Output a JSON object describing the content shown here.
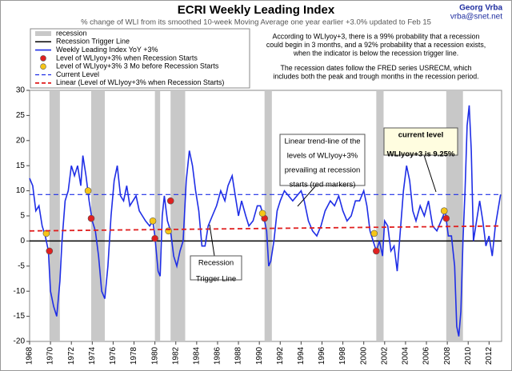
{
  "chart_data": {
    "type": "line",
    "title": "ECRI Weekly Leading Index",
    "subtitle": "% change of WLI from its smoothed 10-week Moving Average one year earlier +3.0% updated to Feb 15",
    "author": "Georg Vrba",
    "email": "vrba@snet.net",
    "notes": [
      "According to WLIyoy+3, there is a 99% probability that a recession",
      "could begin in 3 months, and a 92% probability that a recession exists,",
      "when the indicator is below the recession trigger line.",
      "The recession dates follow the FRED series USRECM, which",
      "includes both the peak and trough months in the recession period."
    ],
    "xlim": [
      1968,
      2013.2
    ],
    "ylim": [
      -20,
      30
    ],
    "xticks": [
      1968,
      1970,
      1972,
      1974,
      1976,
      1978,
      1980,
      1982,
      1984,
      1986,
      1988,
      1990,
      1992,
      1994,
      1996,
      1998,
      2000,
      2002,
      2004,
      2006,
      2008,
      2010,
      2012
    ],
    "yticks": [
      -20,
      -15,
      -10,
      -5,
      0,
      5,
      10,
      15,
      20,
      25,
      30
    ],
    "recessions": {
      "name": "recession",
      "color": "#c8c8c8",
      "spans": [
        [
          1969.9,
          1970.9
        ],
        [
          1973.9,
          1975.2
        ],
        [
          1980.0,
          1980.5
        ],
        [
          1981.5,
          1982.9
        ],
        [
          1990.5,
          1991.2
        ],
        [
          2001.2,
          2001.9
        ],
        [
          2007.9,
          2009.5
        ]
      ]
    },
    "series": [
      {
        "name": "Recession Trigger Line",
        "type": "line",
        "color": "#000000",
        "width": 1.5,
        "x": [
          1968,
          2013.2
        ],
        "values": [
          0,
          0
        ]
      },
      {
        "name": "Weekly Leading Index YoY +3%",
        "type": "line",
        "color": "#1f2ee6",
        "width": 1.6,
        "x": [
          1968.0,
          1968.3,
          1968.6,
          1968.9,
          1969.2,
          1969.5,
          1969.8,
          1970.0,
          1970.3,
          1970.6,
          1970.9,
          1971.1,
          1971.4,
          1971.7,
          1972.0,
          1972.3,
          1972.6,
          1972.9,
          1973.1,
          1973.4,
          1973.7,
          1974.0,
          1974.3,
          1974.6,
          1974.9,
          1975.2,
          1975.5,
          1975.8,
          1976.1,
          1976.4,
          1976.7,
          1977.0,
          1977.3,
          1977.6,
          1977.9,
          1978.2,
          1978.5,
          1978.8,
          1979.1,
          1979.5,
          1979.8,
          1980.0,
          1980.3,
          1980.5,
          1980.7,
          1980.9,
          1981.2,
          1981.5,
          1981.8,
          1982.1,
          1982.4,
          1982.7,
          1983.0,
          1983.3,
          1983.6,
          1983.9,
          1984.2,
          1984.5,
          1984.8,
          1985.1,
          1985.5,
          1985.9,
          1986.3,
          1986.7,
          1987.0,
          1987.4,
          1987.7,
          1988.0,
          1988.3,
          1988.7,
          1989.0,
          1989.4,
          1989.8,
          1990.1,
          1990.4,
          1990.7,
          1990.9,
          1991.1,
          1991.4,
          1991.7,
          1992.0,
          1992.4,
          1992.8,
          1993.2,
          1993.6,
          1994.0,
          1994.3,
          1994.7,
          1995.1,
          1995.5,
          1995.9,
          1996.3,
          1996.8,
          1997.2,
          1997.6,
          1998.0,
          1998.4,
          1998.8,
          1999.2,
          1999.6,
          2000.0,
          2000.3,
          2000.6,
          2000.9,
          2001.2,
          2001.5,
          2001.8,
          2002.0,
          2002.3,
          2002.6,
          2002.9,
          2003.2,
          2003.5,
          2003.8,
          2004.1,
          2004.4,
          2004.7,
          2005.0,
          2005.4,
          2005.8,
          2006.2,
          2006.6,
          2007.0,
          2007.4,
          2007.8,
          2008.1,
          2008.4,
          2008.7,
          2008.9,
          2009.1,
          2009.3,
          2009.5,
          2009.7,
          2009.9,
          2010.1,
          2010.3,
          2010.5,
          2010.8,
          2011.1,
          2011.4,
          2011.7,
          2012.0,
          2012.3,
          2012.6,
          2013.0,
          2013.1
        ],
        "values": [
          12.5,
          11,
          6,
          7,
          3,
          1,
          -2,
          -10,
          -13,
          -15,
          -8,
          0,
          8,
          10,
          15,
          13,
          15,
          11,
          17,
          13,
          8,
          4,
          2,
          -3,
          -10,
          -11.5,
          -5,
          5,
          12,
          15,
          9,
          8,
          11,
          7,
          8,
          9,
          6,
          5,
          4,
          3,
          4,
          1,
          -6,
          -7,
          5,
          9,
          4,
          2,
          -3,
          -5,
          -2,
          0,
          12,
          18,
          15,
          10,
          6,
          -1,
          -1,
          3,
          5,
          7,
          10,
          8,
          11,
          13,
          9,
          5,
          8,
          5,
          3,
          4,
          7,
          7,
          5,
          2,
          -5,
          -4,
          0,
          6,
          8,
          10,
          9,
          8,
          9,
          10,
          8,
          4,
          2,
          1,
          3,
          6,
          8,
          7,
          9,
          6,
          4,
          5,
          8,
          8,
          10,
          7,
          2,
          0,
          -2,
          0,
          -3,
          4,
          3,
          -2,
          -1,
          -6,
          2,
          10,
          15,
          12,
          6,
          4,
          7,
          5,
          8,
          3,
          2,
          4,
          6,
          1,
          1,
          -5,
          -17,
          -19,
          -14,
          0,
          10,
          23,
          27,
          18,
          0,
          4,
          8,
          4,
          -1,
          1,
          -3,
          3,
          8,
          9.25
        ]
      },
      {
        "name": "Level of WLIyoy+3% when Recession Starts",
        "type": "scatter",
        "color": "#e02020",
        "x": [
          1969.9,
          1973.9,
          1980.0,
          1981.5,
          1990.5,
          2001.2,
          2007.9
        ],
        "values": [
          -2,
          4.5,
          0.5,
          8,
          4.5,
          -2,
          4.5
        ]
      },
      {
        "name": "Level of WLIyoy+3% 3 Mo before Recession Starts",
        "type": "scatter",
        "color": "#f5c518",
        "x": [
          1969.6,
          1973.6,
          1979.8,
          1981.3,
          1990.3,
          2001.0,
          2007.7
        ],
        "values": [
          1.5,
          10,
          4,
          2,
          5.5,
          1.5,
          6
        ]
      },
      {
        "name": "Current Level",
        "type": "line",
        "dash": true,
        "color": "#1f2ee6",
        "width": 1.2,
        "x": [
          1968,
          2013.2
        ],
        "values": [
          9.25,
          9.25
        ]
      },
      {
        "name": "Linear (Level of WLIyoy+3% when Recession Starts)",
        "type": "line",
        "dash": true,
        "color": "#e02020",
        "width": 1.8,
        "x": [
          1968,
          2013.2
        ],
        "values": [
          2,
          3
        ]
      }
    ],
    "annotations": [
      {
        "lines": [
          "Linear trend-line of the",
          "levels of WLIyoy+3%",
          "prevailing at recession",
          "starts (red markers)"
        ]
      },
      {
        "lines": [
          "current level",
          "WLIyoy+3 is 9.25%"
        ]
      },
      {
        "lines": [
          "Recession",
          "Trigger Line"
        ]
      }
    ]
  }
}
